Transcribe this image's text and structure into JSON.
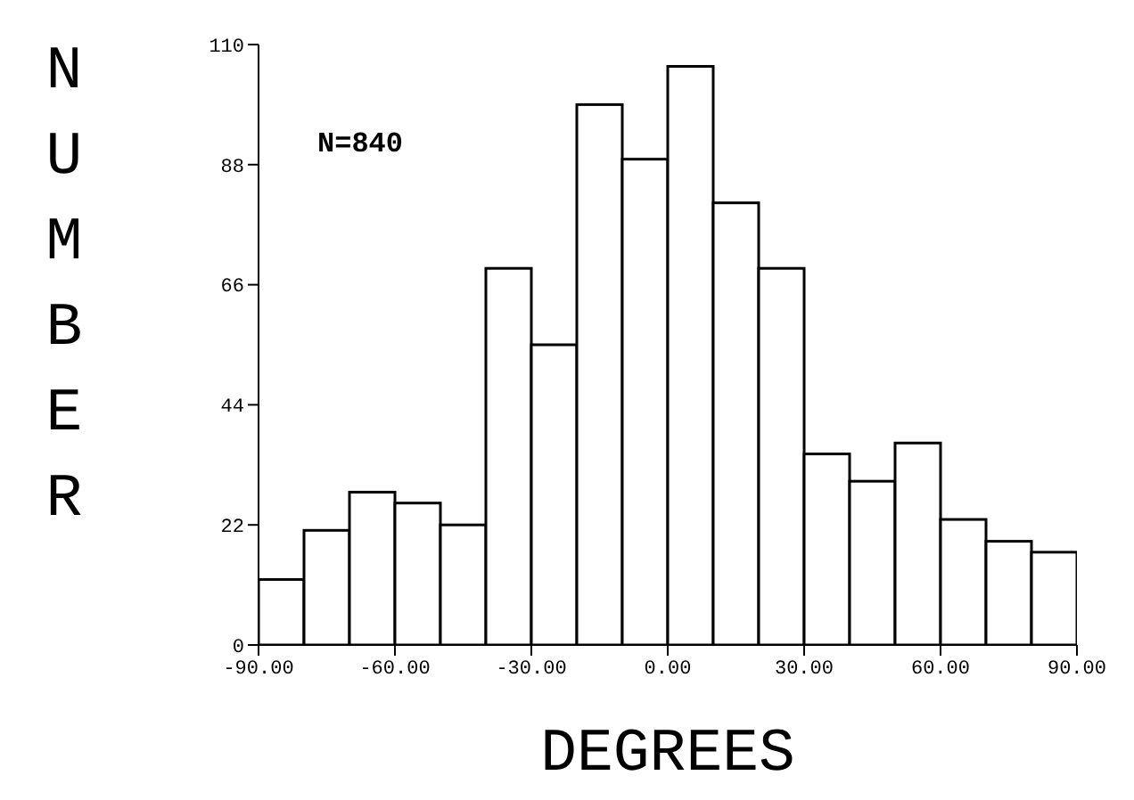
{
  "chart_data": {
    "type": "histogram",
    "xlabel": "DEGREES",
    "ylabel": "NUMBER",
    "annotations": [
      "N=840"
    ],
    "bins": [
      -90,
      -80,
      -70,
      -60,
      -50,
      -40,
      -30,
      -20,
      -10,
      0,
      10,
      20,
      30,
      40,
      50,
      60,
      70,
      80,
      90
    ],
    "values": [
      12,
      21,
      28,
      26,
      22,
      69,
      55,
      99,
      89,
      106,
      81,
      69,
      35,
      30,
      37,
      23,
      19,
      17
    ],
    "color": "#ffffff",
    "xlim": [
      -90,
      90
    ],
    "xticks": [
      {
        "value": -90,
        "label": "-90.00"
      },
      {
        "value": -60,
        "label": "-60.00"
      },
      {
        "value": -30,
        "label": "-30.00"
      },
      {
        "value": 0,
        "label": "0.00"
      },
      {
        "value": 30,
        "label": "30.00"
      },
      {
        "value": 60,
        "label": "60.00"
      },
      {
        "value": 90,
        "label": "90.00"
      }
    ],
    "ylim": [
      0,
      110
    ],
    "yticks": [
      0,
      22,
      44,
      66,
      88,
      110
    ],
    "grid": false,
    "legend": false
  }
}
